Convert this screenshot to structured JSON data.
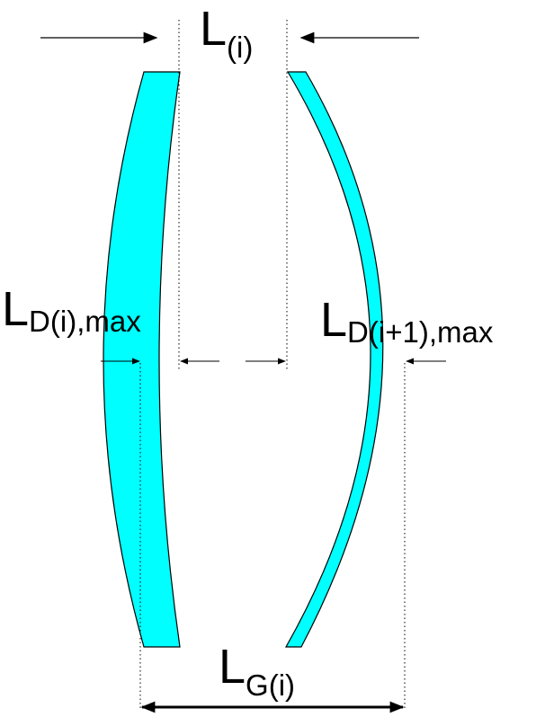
{
  "labels": {
    "L_i": {
      "main": "L",
      "sub": "(i)"
    },
    "L_D_i_max": {
      "main": "L",
      "sub": "D(i),max"
    },
    "L_D_i1_max": {
      "main": "L",
      "sub": "D(i+1),max"
    },
    "L_G_i": {
      "main": "L",
      "sub": "G(i)"
    }
  },
  "colors": {
    "plate_fill": "#00ffff",
    "stroke": "#000000",
    "background": "#ffffff"
  }
}
